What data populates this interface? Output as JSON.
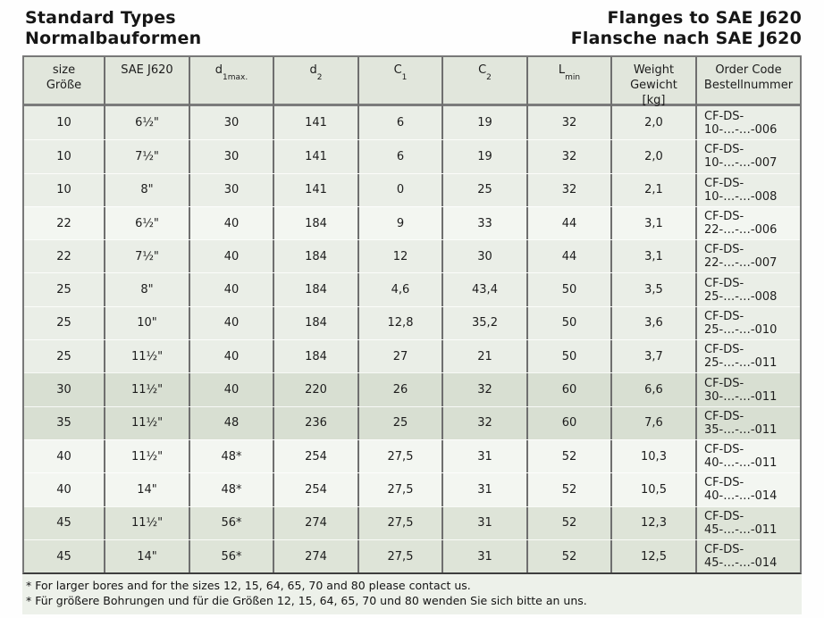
{
  "header": {
    "left_line1": "Standard Types",
    "left_line2": "Normalbauformen",
    "right_line1": "Flanges to SAE J620",
    "right_line2": "Flansche nach SAE J620"
  },
  "table": {
    "columns": {
      "size": {
        "line1": "size",
        "line2": "Größe"
      },
      "sae": {
        "line1": "SAE J620"
      },
      "d1max": {
        "base": "d",
        "sub": "1max."
      },
      "d2": {
        "base": "d",
        "sub": "2"
      },
      "c1": {
        "base": "C",
        "sub": "1"
      },
      "c2": {
        "base": "C",
        "sub": "2"
      },
      "lmin": {
        "base": "L",
        "sub": "min"
      },
      "weight": {
        "line1": "Weight",
        "line2": "Gewicht",
        "line3": "[kg]"
      },
      "order": {
        "line1": "Order Code",
        "line2": "Bestellnummer"
      }
    },
    "rows": [
      {
        "size": "10",
        "sae": "6½\"",
        "d1max": "30",
        "d2": "141",
        "c1": "6",
        "c2": "19",
        "lmin": "32",
        "weight": "2,0",
        "order_code": "CF-DS-10-…-…-006",
        "shade": "a"
      },
      {
        "size": "10",
        "sae": "7½\"",
        "d1max": "30",
        "d2": "141",
        "c1": "6",
        "c2": "19",
        "lmin": "32",
        "weight": "2,0",
        "order_code": "CF-DS-10-…-…-007",
        "shade": "a"
      },
      {
        "size": "10",
        "sae": "8\"",
        "d1max": "30",
        "d2": "141",
        "c1": "0",
        "c2": "25",
        "lmin": "32",
        "weight": "2,1",
        "order_code": "CF-DS-10-…-…-008",
        "shade": "a"
      },
      {
        "size": "22",
        "sae": "6½\"",
        "d1max": "40",
        "d2": "184",
        "c1": "9",
        "c2": "33",
        "lmin": "44",
        "weight": "3,1",
        "order_code": "CF-DS-22-…-…-006",
        "shade": "b"
      },
      {
        "size": "22",
        "sae": "7½\"",
        "d1max": "40",
        "d2": "184",
        "c1": "12",
        "c2": "30",
        "lmin": "44",
        "weight": "3,1",
        "order_code": "CF-DS-22-…-…-007",
        "shade": "a"
      },
      {
        "size": "25",
        "sae": "8\"",
        "d1max": "40",
        "d2": "184",
        "c1": "4,6",
        "c2": "43,4",
        "lmin": "50",
        "weight": "3,5",
        "order_code": "CF-DS-25-…-…-008",
        "shade": "a"
      },
      {
        "size": "25",
        "sae": "10\"",
        "d1max": "40",
        "d2": "184",
        "c1": "12,8",
        "c2": "35,2",
        "lmin": "50",
        "weight": "3,6",
        "order_code": "CF-DS-25-…-…-010",
        "shade": "a"
      },
      {
        "size": "25",
        "sae": "11½\"",
        "d1max": "40",
        "d2": "184",
        "c1": "27",
        "c2": "21",
        "lmin": "50",
        "weight": "3,7",
        "order_code": "CF-DS-25-…-…-011",
        "shade": "a"
      },
      {
        "size": "30",
        "sae": "11½\"",
        "d1max": "40",
        "d2": "220",
        "c1": "26",
        "c2": "32",
        "lmin": "60",
        "weight": "6,6",
        "order_code": "CF-DS-30-…-…-011",
        "shade": "c"
      },
      {
        "size": "35",
        "sae": "11½\"",
        "d1max": "48",
        "d2": "236",
        "c1": "25",
        "c2": "32",
        "lmin": "60",
        "weight": "7,6",
        "order_code": "CF-DS-35-…-…-011",
        "shade": "c"
      },
      {
        "size": "40",
        "sae": "11½\"",
        "d1max": "48*",
        "d2": "254",
        "c1": "27,5",
        "c2": "31",
        "lmin": "52",
        "weight": "10,3",
        "order_code": "CF-DS-40-…-…-011",
        "shade": "b"
      },
      {
        "size": "40",
        "sae": "14\"",
        "d1max": "48*",
        "d2": "254",
        "c1": "27,5",
        "c2": "31",
        "lmin": "52",
        "weight": "10,5",
        "order_code": "CF-DS-40-…-…-014",
        "shade": "b"
      },
      {
        "size": "45",
        "sae": "11½\"",
        "d1max": "56*",
        "d2": "274",
        "c1": "27,5",
        "c2": "31",
        "lmin": "52",
        "weight": "12,3",
        "order_code": "CF-DS-45-…-…-011",
        "shade": "d"
      },
      {
        "size": "45",
        "sae": "14\"",
        "d1max": "56*",
        "d2": "274",
        "c1": "27,5",
        "c2": "31",
        "lmin": "52",
        "weight": "12,5",
        "order_code": "CF-DS-45-…-…-014",
        "shade": "d"
      }
    ]
  },
  "footnotes": [
    "* For larger bores and for the sizes 12, 15, 64, 65, 70 and 80 please contact us.",
    "* Für größere Bohrungen und für die Größen 12, 15, 64, 65, 70 und 80 wenden Sie sich bitte an uns."
  ],
  "colors": {
    "header_row_bg": "#e1e6dc",
    "row_shade_light": "#eaeee7",
    "row_shade_white": "#f3f6f1",
    "row_shade_dark": "#d8dfd2",
    "row_shade_medium": "#dee4d8",
    "grid_line": "#6f6f6f",
    "footnote_bg": "#edf1ea",
    "text": "#1c1c1c"
  }
}
